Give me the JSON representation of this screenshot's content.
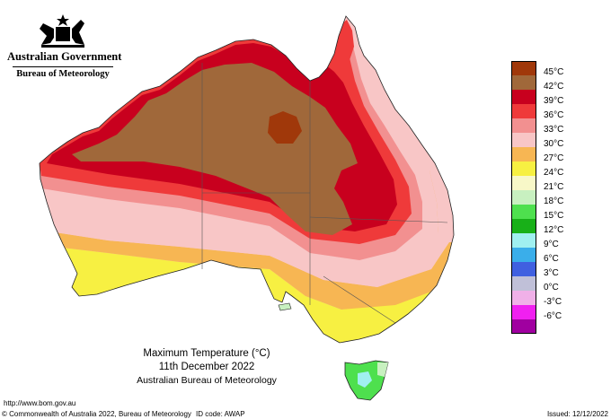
{
  "header": {
    "government": "Australian Government",
    "bureau": "Bureau of Meteorology"
  },
  "caption": {
    "title": "Maximum Temperature (°C)",
    "date": "11th December 2022",
    "org": "Australian Bureau of Meteorology"
  },
  "footer": {
    "url": "http://www.bom.gov.au",
    "copyright": "© Commonwealth of Australia 2022, Bureau of Meteorology",
    "id_code": "ID code: AWAP",
    "issued": "Issued: 12/12/2022"
  },
  "legend": [
    {
      "label": "45°C",
      "color": "#a0380a"
    },
    {
      "label": "42°C",
      "color": "#a0683a"
    },
    {
      "label": "39°C",
      "color": "#c8001e"
    },
    {
      "label": "36°C",
      "color": "#ef3a3a"
    },
    {
      "label": "33°C",
      "color": "#f29090"
    },
    {
      "label": "30°C",
      "color": "#f8c6c6"
    },
    {
      "label": "27°C",
      "color": "#f7b653"
    },
    {
      "label": "24°C",
      "color": "#f7f042"
    },
    {
      "label": "21°C",
      "color": "#f8f8c8"
    },
    {
      "label": "18°C",
      "color": "#c8f0c0"
    },
    {
      "label": "15°C",
      "color": "#4ee04e"
    },
    {
      "label": "12°C",
      "color": "#18b018"
    },
    {
      "label": "9°C",
      "color": "#a0f0f0"
    },
    {
      "label": "6°C",
      "color": "#3aaeea"
    },
    {
      "label": "3°C",
      "color": "#4060e0"
    },
    {
      "label": "0°C",
      "color": "#c0c0d8"
    },
    {
      "label": "-3°C",
      "color": "#f0b0e8"
    },
    {
      "label": "-6°C",
      "color": "#f020f0"
    },
    {
      "label": "",
      "color": "#a000a0"
    }
  ]
}
